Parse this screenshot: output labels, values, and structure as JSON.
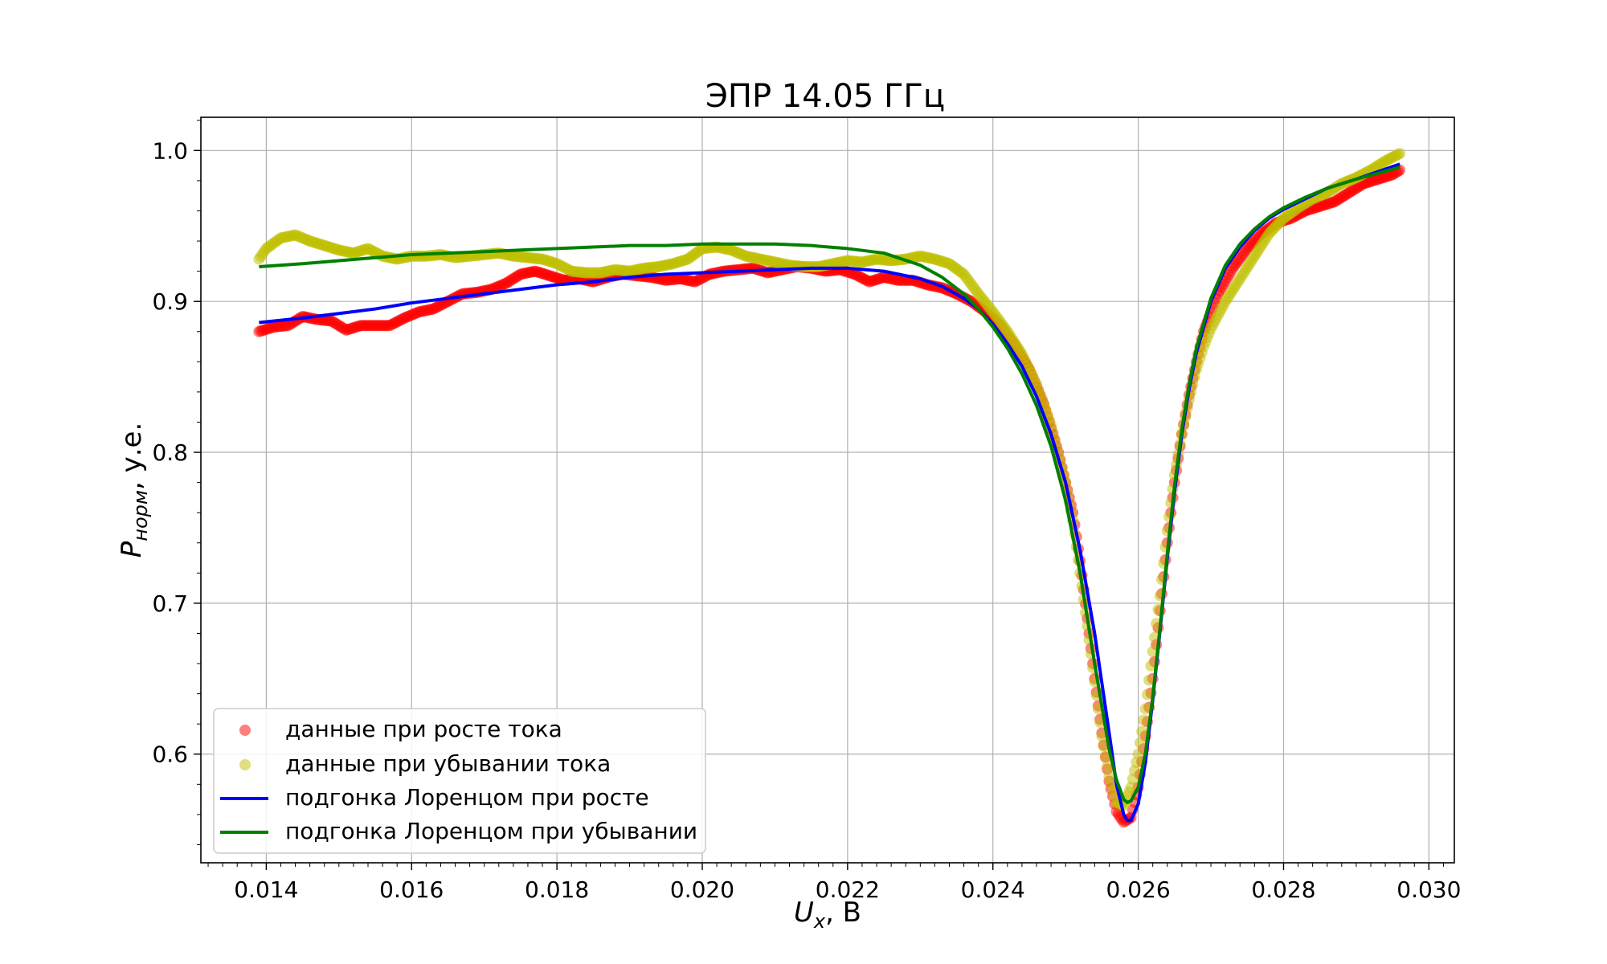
{
  "chart_data": {
    "type": "scatter",
    "title": "ЭПР 14.05 ГГц",
    "xlabel": {
      "main": "U",
      "sub": "x",
      "rest": ", В"
    },
    "ylabel": {
      "main": "P",
      "sub": "норм",
      "rest": ", у.е."
    },
    "xlim": [
      0.0131,
      0.03035
    ],
    "ylim": [
      0.528,
      1.022
    ],
    "grid": true,
    "x_ticks": [
      {
        "value": 0.014,
        "label": "0.014"
      },
      {
        "value": 0.016,
        "label": "0.016"
      },
      {
        "value": 0.018,
        "label": "0.018"
      },
      {
        "value": 0.02,
        "label": "0.020"
      },
      {
        "value": 0.022,
        "label": "0.022"
      },
      {
        "value": 0.024,
        "label": "0.024"
      },
      {
        "value": 0.026,
        "label": "0.026"
      },
      {
        "value": 0.028,
        "label": "0.028"
      },
      {
        "value": 0.03,
        "label": "0.030"
      }
    ],
    "y_ticks": [
      {
        "value": 0.6,
        "label": "0.6"
      },
      {
        "value": 0.7,
        "label": "0.7"
      },
      {
        "value": 0.8,
        "label": "0.8"
      },
      {
        "value": 0.9,
        "label": "0.9"
      },
      {
        "value": 1.0,
        "label": "1.0"
      }
    ],
    "legend_position": "lower-left",
    "series": [
      {
        "name": "данные при росте тока",
        "kind": "scatter",
        "color": "#ff0000",
        "x": [
          0.0139,
          0.0141,
          0.0143,
          0.0145,
          0.0147,
          0.0149,
          0.0151,
          0.0153,
          0.0155,
          0.0157,
          0.0159,
          0.0161,
          0.0163,
          0.0165,
          0.0167,
          0.0169,
          0.0171,
          0.0173,
          0.0175,
          0.0177,
          0.0179,
          0.0181,
          0.0183,
          0.0185,
          0.0187,
          0.0189,
          0.0191,
          0.0193,
          0.0195,
          0.0197,
          0.0199,
          0.0201,
          0.0203,
          0.0205,
          0.0207,
          0.0209,
          0.0211,
          0.0213,
          0.0215,
          0.0217,
          0.0219,
          0.0221,
          0.0223,
          0.0225,
          0.0227,
          0.0229,
          0.0231,
          0.0233,
          0.0235,
          0.0237,
          0.0239,
          0.0241,
          0.0243,
          0.0245,
          0.0247,
          0.0249,
          0.0251,
          0.0252,
          0.0253,
          0.0254,
          0.0255,
          0.0256,
          0.0257,
          0.0258,
          0.0259,
          0.026,
          0.0261,
          0.0262,
          0.0263,
          0.0264,
          0.0265,
          0.0266,
          0.0267,
          0.0268,
          0.0269,
          0.0271,
          0.0273,
          0.0275,
          0.0277,
          0.0279,
          0.0281,
          0.0283,
          0.0285,
          0.0287,
          0.0289,
          0.0291,
          0.0293,
          0.0295,
          0.0296
        ],
        "y": [
          0.88,
          0.883,
          0.884,
          0.89,
          0.888,
          0.887,
          0.881,
          0.884,
          0.884,
          0.884,
          0.889,
          0.893,
          0.895,
          0.9,
          0.905,
          0.906,
          0.908,
          0.912,
          0.918,
          0.92,
          0.917,
          0.914,
          0.915,
          0.913,
          0.916,
          0.918,
          0.917,
          0.916,
          0.914,
          0.915,
          0.913,
          0.918,
          0.92,
          0.921,
          0.922,
          0.919,
          0.921,
          0.923,
          0.922,
          0.92,
          0.921,
          0.918,
          0.913,
          0.916,
          0.914,
          0.914,
          0.911,
          0.909,
          0.905,
          0.9,
          0.893,
          0.884,
          0.871,
          0.855,
          0.832,
          0.8,
          0.76,
          0.728,
          0.69,
          0.65,
          0.614,
          0.582,
          0.562,
          0.555,
          0.558,
          0.578,
          0.612,
          0.65,
          0.695,
          0.74,
          0.78,
          0.812,
          0.838,
          0.86,
          0.88,
          0.905,
          0.922,
          0.935,
          0.945,
          0.952,
          0.955,
          0.96,
          0.963,
          0.966,
          0.972,
          0.978,
          0.981,
          0.984,
          0.987
        ]
      },
      {
        "name": "данные при убывании тока",
        "kind": "scatter",
        "color": "#bfbf00",
        "x": [
          0.0139,
          0.014,
          0.0142,
          0.0144,
          0.0146,
          0.0148,
          0.015,
          0.0152,
          0.0154,
          0.0156,
          0.0158,
          0.016,
          0.0162,
          0.0164,
          0.0166,
          0.0168,
          0.017,
          0.0172,
          0.0174,
          0.0176,
          0.0178,
          0.018,
          0.0182,
          0.0184,
          0.0186,
          0.0188,
          0.019,
          0.0192,
          0.0194,
          0.0196,
          0.0198,
          0.02,
          0.0202,
          0.0204,
          0.0206,
          0.0208,
          0.021,
          0.0212,
          0.0214,
          0.0216,
          0.0218,
          0.022,
          0.0222,
          0.0224,
          0.0226,
          0.0228,
          0.023,
          0.0232,
          0.0234,
          0.0236,
          0.0238,
          0.024,
          0.0242,
          0.0244,
          0.0246,
          0.0248,
          0.025,
          0.0251,
          0.0252,
          0.0253,
          0.0254,
          0.0255,
          0.0256,
          0.0257,
          0.0258,
          0.0259,
          0.026,
          0.0261,
          0.0262,
          0.0263,
          0.0264,
          0.0265,
          0.0266,
          0.0267,
          0.0268,
          0.0269,
          0.027,
          0.0272,
          0.0274,
          0.0276,
          0.0278,
          0.028,
          0.0282,
          0.0284,
          0.0286,
          0.0288,
          0.029,
          0.0292,
          0.0294,
          0.0296
        ],
        "y": [
          0.928,
          0.935,
          0.942,
          0.944,
          0.94,
          0.937,
          0.934,
          0.932,
          0.935,
          0.93,
          0.928,
          0.93,
          0.93,
          0.931,
          0.929,
          0.93,
          0.931,
          0.932,
          0.93,
          0.929,
          0.928,
          0.925,
          0.92,
          0.919,
          0.919,
          0.921,
          0.92,
          0.922,
          0.923,
          0.925,
          0.928,
          0.935,
          0.936,
          0.934,
          0.93,
          0.928,
          0.926,
          0.924,
          0.923,
          0.923,
          0.925,
          0.927,
          0.926,
          0.928,
          0.927,
          0.928,
          0.93,
          0.928,
          0.925,
          0.918,
          0.905,
          0.893,
          0.88,
          0.865,
          0.845,
          0.818,
          0.78,
          0.755,
          0.72,
          0.685,
          0.648,
          0.612,
          0.585,
          0.568,
          0.566,
          0.578,
          0.6,
          0.63,
          0.668,
          0.705,
          0.748,
          0.785,
          0.812,
          0.835,
          0.855,
          0.87,
          0.882,
          0.9,
          0.915,
          0.93,
          0.945,
          0.955,
          0.962,
          0.968,
          0.972,
          0.978,
          0.982,
          0.987,
          0.993,
          0.998
        ]
      },
      {
        "name": "подгонка Лоренцом при росте",
        "kind": "line",
        "color": "#0000ff",
        "x": [
          0.0139,
          0.0145,
          0.015,
          0.0155,
          0.016,
          0.0165,
          0.017,
          0.0175,
          0.018,
          0.0185,
          0.019,
          0.0195,
          0.02,
          0.0205,
          0.021,
          0.0215,
          0.022,
          0.0225,
          0.023,
          0.0233,
          0.0236,
          0.0238,
          0.024,
          0.0242,
          0.0244,
          0.0246,
          0.0248,
          0.025,
          0.0252,
          0.0254,
          0.0256,
          0.0257,
          0.0258,
          0.02585,
          0.0259,
          0.026,
          0.0261,
          0.0262,
          0.0263,
          0.0264,
          0.0265,
          0.0266,
          0.0267,
          0.0268,
          0.027,
          0.0272,
          0.0274,
          0.0276,
          0.0278,
          0.028,
          0.0283,
          0.0286,
          0.029,
          0.0293,
          0.0296
        ],
        "y": [
          0.886,
          0.889,
          0.892,
          0.895,
          0.899,
          0.902,
          0.905,
          0.908,
          0.911,
          0.913,
          0.916,
          0.918,
          0.919,
          0.92,
          0.921,
          0.922,
          0.922,
          0.92,
          0.915,
          0.91,
          0.902,
          0.895,
          0.885,
          0.872,
          0.857,
          0.837,
          0.812,
          0.78,
          0.735,
          0.68,
          0.614,
          0.58,
          0.56,
          0.556,
          0.556,
          0.567,
          0.595,
          0.636,
          0.682,
          0.73,
          0.774,
          0.812,
          0.842,
          0.866,
          0.9,
          0.922,
          0.936,
          0.947,
          0.955,
          0.961,
          0.968,
          0.975,
          0.981,
          0.986,
          0.991
        ]
      },
      {
        "name": "подгонка Лоренцом при убывании",
        "kind": "line",
        "color": "#008000",
        "x": [
          0.0139,
          0.0145,
          0.015,
          0.0155,
          0.016,
          0.0165,
          0.017,
          0.0175,
          0.018,
          0.0185,
          0.019,
          0.0195,
          0.02,
          0.0205,
          0.021,
          0.0215,
          0.022,
          0.0225,
          0.023,
          0.0233,
          0.0236,
          0.0238,
          0.024,
          0.0242,
          0.0244,
          0.0246,
          0.0248,
          0.025,
          0.0252,
          0.0254,
          0.0256,
          0.0257,
          0.0258,
          0.02585,
          0.0259,
          0.026,
          0.0261,
          0.0262,
          0.0263,
          0.0264,
          0.0265,
          0.0266,
          0.0267,
          0.0268,
          0.027,
          0.0272,
          0.0274,
          0.0276,
          0.0278,
          0.028,
          0.0283,
          0.0286,
          0.029,
          0.0293,
          0.0296
        ],
        "y": [
          0.923,
          0.925,
          0.927,
          0.929,
          0.931,
          0.932,
          0.933,
          0.934,
          0.935,
          0.936,
          0.937,
          0.937,
          0.938,
          0.938,
          0.938,
          0.937,
          0.935,
          0.932,
          0.924,
          0.916,
          0.905,
          0.895,
          0.883,
          0.869,
          0.852,
          0.831,
          0.804,
          0.768,
          0.72,
          0.66,
          0.603,
          0.583,
          0.57,
          0.568,
          0.569,
          0.578,
          0.601,
          0.638,
          0.684,
          0.733,
          0.778,
          0.815,
          0.845,
          0.869,
          0.902,
          0.924,
          0.938,
          0.948,
          0.956,
          0.962,
          0.969,
          0.975,
          0.981,
          0.985,
          0.989
        ]
      }
    ]
  }
}
